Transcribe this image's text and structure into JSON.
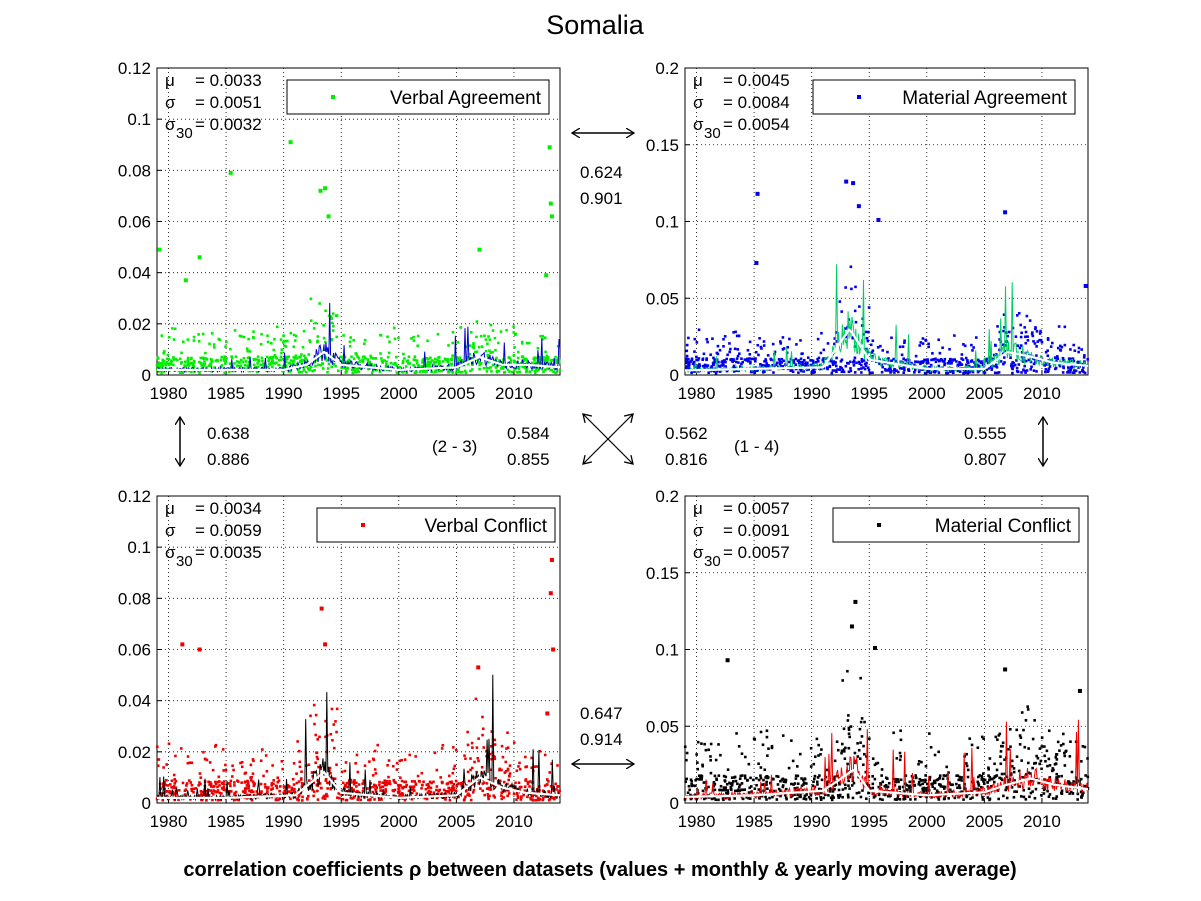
{
  "title": "Somalia",
  "footer": "correlation coefficients ρ between datasets (values + monthly & yearly moving average)",
  "x_ticks": [
    "1980",
    "1985",
    "1990",
    "1995",
    "2000",
    "2005",
    "2010"
  ],
  "chart_data": [
    {
      "type": "scatter",
      "legend": "Verbal Agreement",
      "color": "#00ee00",
      "monthly_color": "#0000cc",
      "stats": {
        "mu": "0.0033",
        "sigma": "0.0051",
        "sigma30": "0.0032"
      },
      "xlim": [
        1979,
        2014
      ],
      "ylim": [
        0,
        0.12
      ],
      "y_ticks": [
        "0",
        "0.02",
        "0.04",
        "0.06",
        "0.08",
        "0.1",
        "0.12"
      ],
      "base": 0.004,
      "spikes": [
        {
          "year": 1979.2,
          "value": 0.049
        },
        {
          "year": 1981.5,
          "value": 0.037
        },
        {
          "year": 1982.7,
          "value": 0.046
        },
        {
          "year": 1985.4,
          "value": 0.079
        },
        {
          "year": 1990.6,
          "value": 0.091
        },
        {
          "year": 1993.2,
          "value": 0.072
        },
        {
          "year": 1993.6,
          "value": 0.073
        },
        {
          "year": 1993.9,
          "value": 0.062
        },
        {
          "year": 2007.0,
          "value": 0.049
        },
        {
          "year": 2012.8,
          "value": 0.039
        },
        {
          "year": 2013.1,
          "value": 0.089
        },
        {
          "year": 2013.2,
          "value": 0.067
        },
        {
          "year": 2013.3,
          "value": 0.062
        }
      ],
      "yearly_avg": [
        {
          "year": 1979,
          "value": 0.002
        },
        {
          "year": 1985,
          "value": 0.002
        },
        {
          "year": 1990,
          "value": 0.002
        },
        {
          "year": 1992,
          "value": 0.004
        },
        {
          "year": 1993.5,
          "value": 0.009
        },
        {
          "year": 1995,
          "value": 0.004
        },
        {
          "year": 2000,
          "value": 0.002
        },
        {
          "year": 2005,
          "value": 0.003
        },
        {
          "year": 2007,
          "value": 0.007
        },
        {
          "year": 2009,
          "value": 0.004
        },
        {
          "year": 2011,
          "value": 0.004
        },
        {
          "year": 2014,
          "value": 0.003
        }
      ]
    },
    {
      "type": "scatter",
      "legend": "Material Agreement",
      "color": "#0000ee",
      "monthly_color": "#00cc66",
      "stats": {
        "mu": "0.0045",
        "sigma": "0.0084",
        "sigma30": "0.0054"
      },
      "xlim": [
        1979,
        2014
      ],
      "ylim": [
        0,
        0.2
      ],
      "y_ticks": [
        "0",
        "0.05",
        "0.1",
        "0.15",
        "0.2"
      ],
      "base": 0.006,
      "spikes": [
        {
          "year": 1985.3,
          "value": 0.118
        },
        {
          "year": 1985.2,
          "value": 0.073
        },
        {
          "year": 1993.0,
          "value": 0.126
        },
        {
          "year": 1993.6,
          "value": 0.125
        },
        {
          "year": 1994.1,
          "value": 0.11
        },
        {
          "year": 1995.8,
          "value": 0.101
        },
        {
          "year": 2006.8,
          "value": 0.106
        },
        {
          "year": 2013.8,
          "value": 0.058
        }
      ],
      "yearly_avg": [
        {
          "year": 1979,
          "value": 0.003
        },
        {
          "year": 1985,
          "value": 0.004
        },
        {
          "year": 1991,
          "value": 0.005
        },
        {
          "year": 1993.3,
          "value": 0.03
        },
        {
          "year": 1995,
          "value": 0.01
        },
        {
          "year": 2000,
          "value": 0.004
        },
        {
          "year": 2005,
          "value": 0.004
        },
        {
          "year": 2007,
          "value": 0.015
        },
        {
          "year": 2009,
          "value": 0.012
        },
        {
          "year": 2011,
          "value": 0.008
        },
        {
          "year": 2014,
          "value": 0.006
        }
      ]
    },
    {
      "type": "scatter",
      "legend": "Verbal Conflict",
      "color": "#ee0000",
      "monthly_color": "#000000",
      "stats": {
        "mu": "0.0034",
        "sigma": "0.0059",
        "sigma30": "0.0035"
      },
      "xlim": [
        1979,
        2014
      ],
      "ylim": [
        0,
        0.12
      ],
      "y_ticks": [
        "0",
        "0.02",
        "0.04",
        "0.06",
        "0.08",
        "0.1",
        "0.12"
      ],
      "base": 0.005,
      "spikes": [
        {
          "year": 1981.2,
          "value": 0.062
        },
        {
          "year": 1982.7,
          "value": 0.06
        },
        {
          "year": 1993.3,
          "value": 0.076
        },
        {
          "year": 1993.6,
          "value": 0.062
        },
        {
          "year": 2006.9,
          "value": 0.053
        },
        {
          "year": 2012.9,
          "value": 0.035
        },
        {
          "year": 2013.3,
          "value": 0.095
        },
        {
          "year": 2013.2,
          "value": 0.082
        },
        {
          "year": 2013.4,
          "value": 0.06
        }
      ],
      "yearly_avg": [
        {
          "year": 1979,
          "value": 0.002
        },
        {
          "year": 1985,
          "value": 0.002
        },
        {
          "year": 1991,
          "value": 0.003
        },
        {
          "year": 1993.5,
          "value": 0.012
        },
        {
          "year": 1995,
          "value": 0.004
        },
        {
          "year": 2000,
          "value": 0.002
        },
        {
          "year": 2005,
          "value": 0.003
        },
        {
          "year": 2007,
          "value": 0.01
        },
        {
          "year": 2009,
          "value": 0.006
        },
        {
          "year": 2011,
          "value": 0.004
        },
        {
          "year": 2014,
          "value": 0.003
        }
      ]
    },
    {
      "type": "scatter",
      "legend": "Material Conflict",
      "color": "#000000",
      "monthly_color": "#ee0000",
      "stats": {
        "mu": "0.0057",
        "sigma": "0.0091",
        "sigma30": "0.0057"
      },
      "xlim": [
        1979,
        2014
      ],
      "ylim": [
        0,
        0.2
      ],
      "y_ticks": [
        "0",
        "0.05",
        "0.1",
        "0.15",
        "0.2"
      ],
      "base": 0.01,
      "spikes": [
        {
          "year": 1982.7,
          "value": 0.093
        },
        {
          "year": 1993.8,
          "value": 0.131
        },
        {
          "year": 1993.5,
          "value": 0.115
        },
        {
          "year": 1995.5,
          "value": 0.101
        },
        {
          "year": 2006.8,
          "value": 0.087
        },
        {
          "year": 2013.3,
          "value": 0.073
        }
      ],
      "yearly_avg": [
        {
          "year": 1979,
          "value": 0.004
        },
        {
          "year": 1985,
          "value": 0.005
        },
        {
          "year": 1991,
          "value": 0.008
        },
        {
          "year": 1993.7,
          "value": 0.022
        },
        {
          "year": 1995,
          "value": 0.008
        },
        {
          "year": 2000,
          "value": 0.005
        },
        {
          "year": 2005,
          "value": 0.007
        },
        {
          "year": 2007,
          "value": 0.012
        },
        {
          "year": 2009,
          "value": 0.016
        },
        {
          "year": 2011,
          "value": 0.012
        },
        {
          "year": 2014,
          "value": 0.009
        }
      ]
    }
  ],
  "correlations": {
    "top": [
      "0.624",
      "0.901"
    ],
    "bottom": [
      "0.647",
      "0.914"
    ],
    "left": [
      "0.638",
      "0.886"
    ],
    "right": [
      "0.555",
      "0.807"
    ],
    "diag_2_3": [
      "0.584",
      "0.855"
    ],
    "diag_1_4": [
      "0.562",
      "0.816"
    ],
    "label_2_3": "(2 - 3)",
    "label_1_4": "(1 - 4)"
  }
}
